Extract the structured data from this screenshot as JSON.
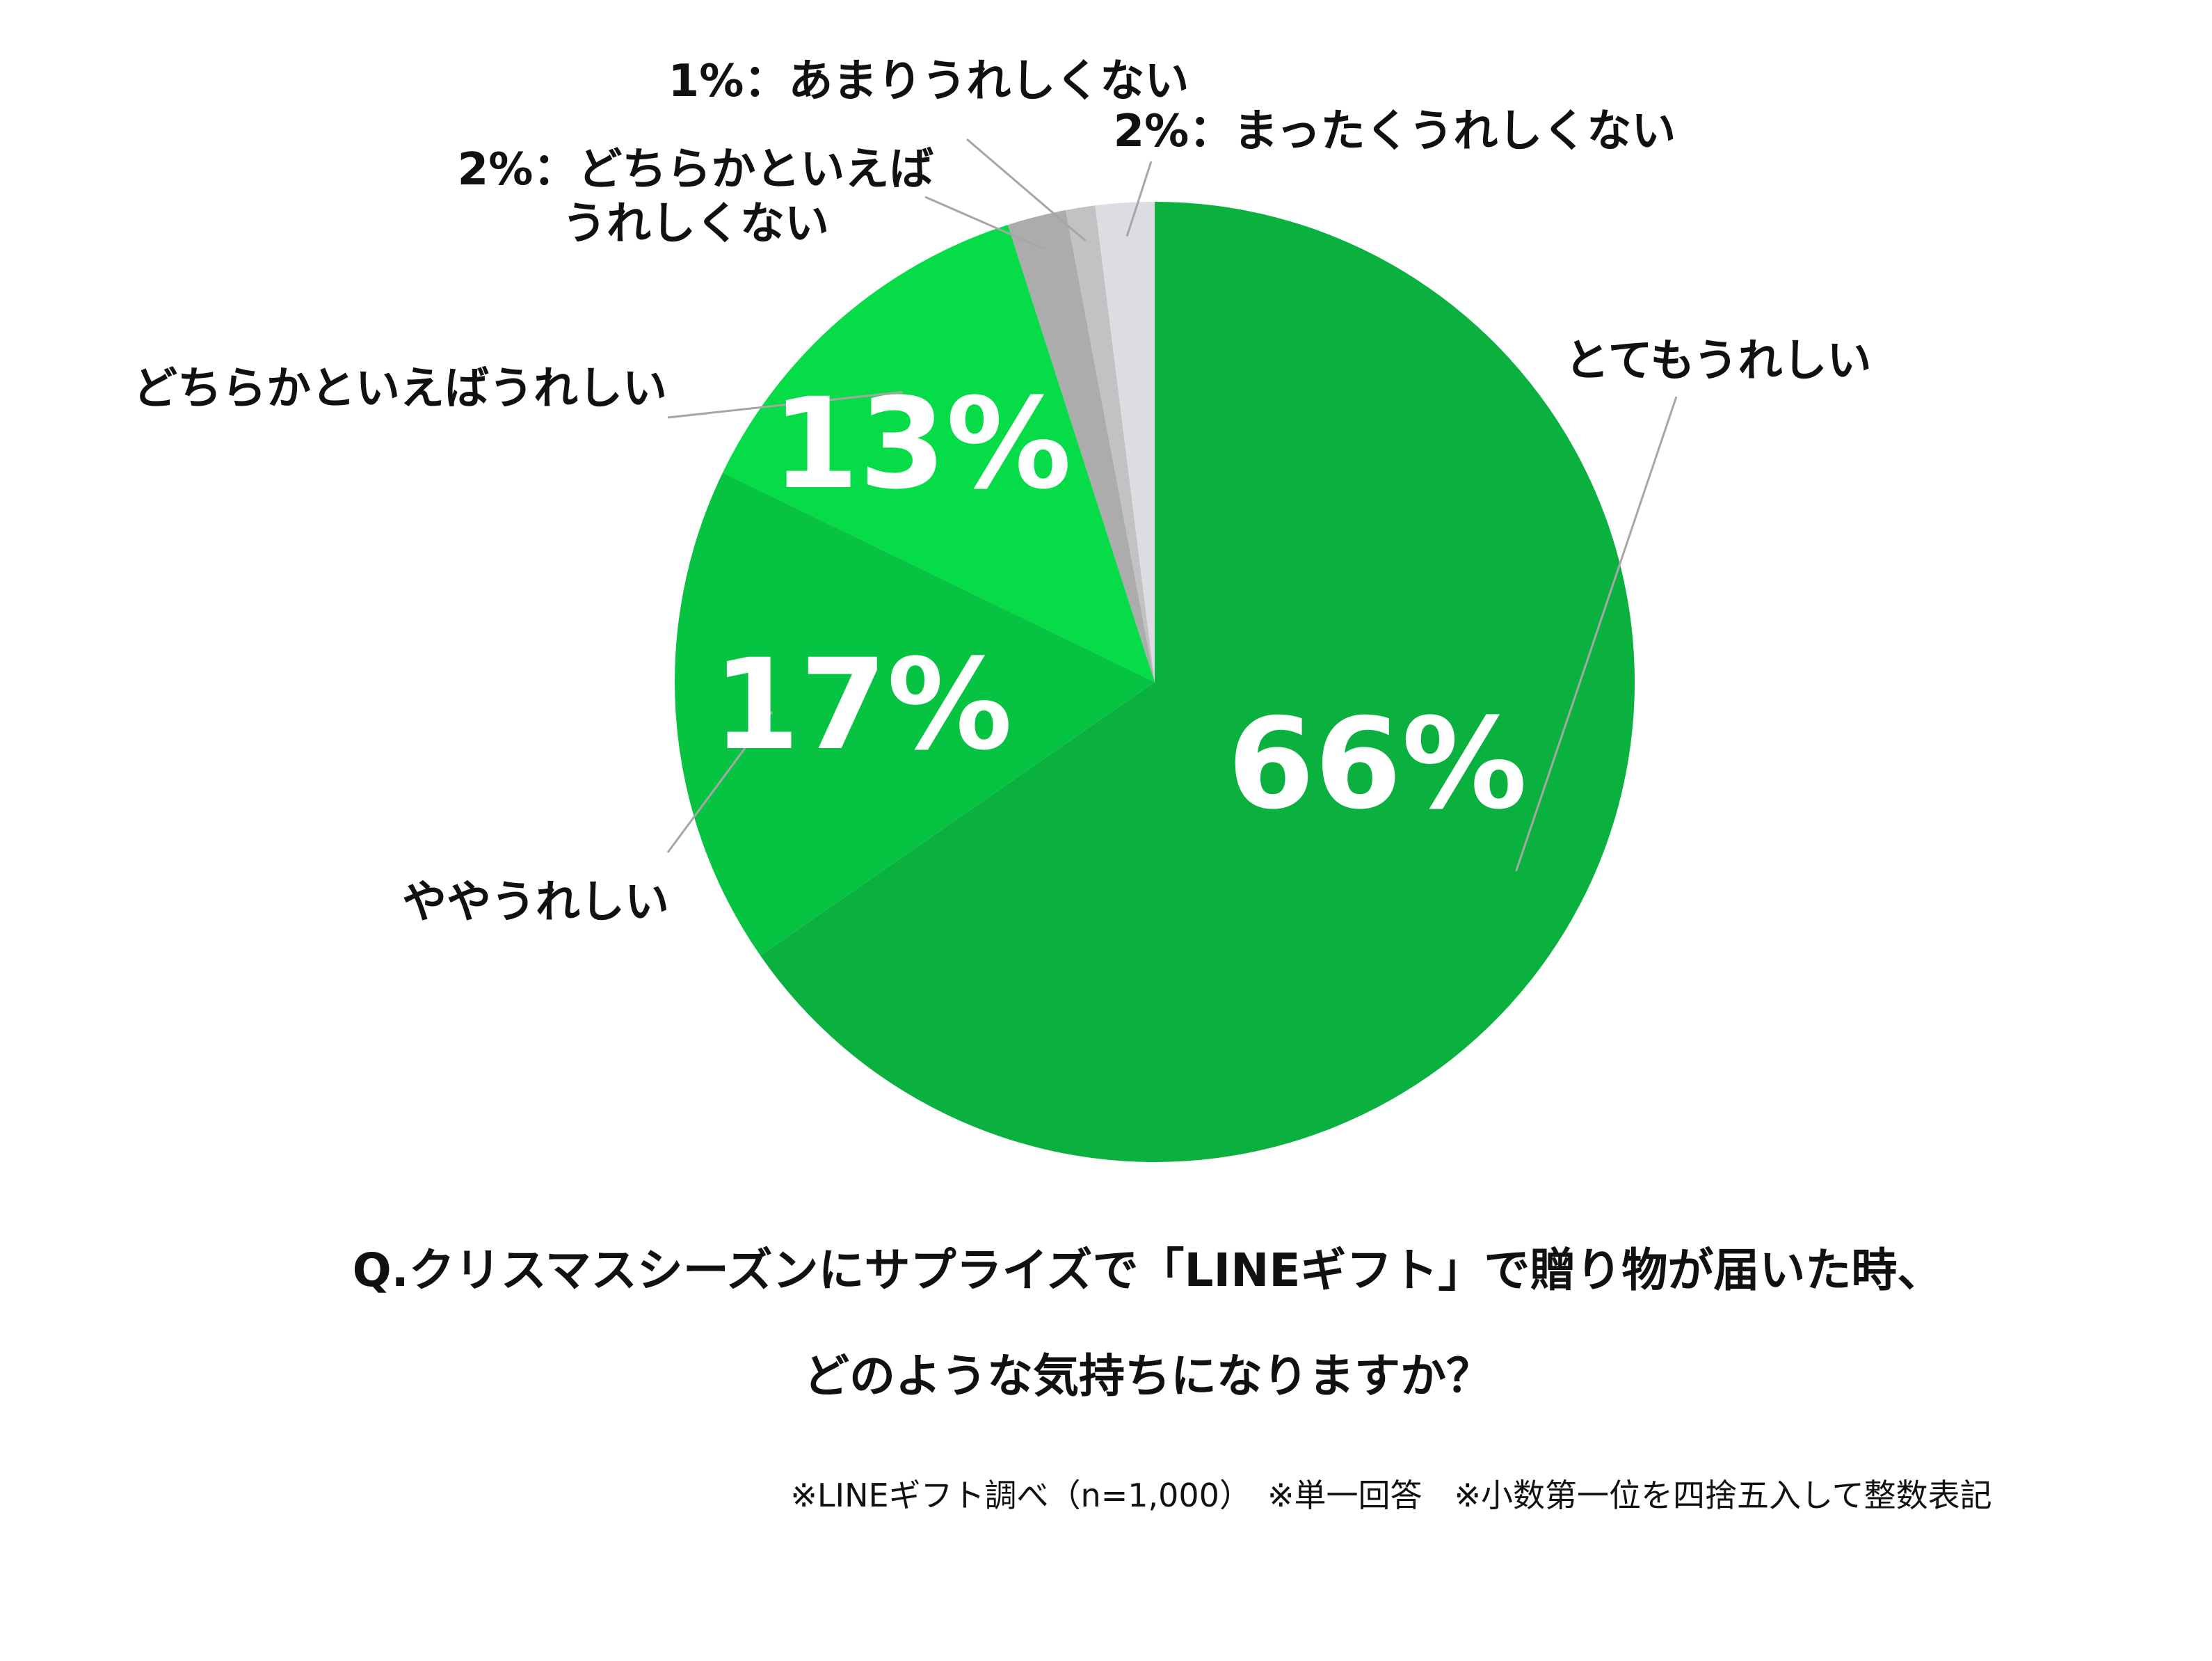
{
  "chart_data": {
    "type": "pie",
    "start_angle_deg": 0,
    "direction": "clockwise",
    "slices": [
      {
        "category": "とてもうれしい",
        "value": 66,
        "label": "66%",
        "color": "#0bb13f"
      },
      {
        "category": "ややうれしい",
        "value": 17,
        "label": "17%",
        "color": "#06c442"
      },
      {
        "category": "どちらかといえばうれしい",
        "value": 13,
        "label": "13%",
        "color": "#06dc48"
      },
      {
        "category": "2%：どちらかといえば|うれしくない",
        "value": 2,
        "label": "",
        "color": "#acacac"
      },
      {
        "category": "1%：あまりうれしくない",
        "value": 1,
        "label": "",
        "color": "#c2c2c2"
      },
      {
        "category": "2%：まったくうれしくない",
        "value": 2,
        "label": "",
        "color": "#dcdde2"
      }
    ],
    "title_lines": [
      "Q.クリスマスシーズンにサプライズで「LINEギフト」で贈り物が届いた時、",
      "どのような気持ちになりますか？"
    ],
    "note": "※LINEギフト調べ（n=1,000）　※単一回答　※小数第一位を四捨五入して整数表記"
  }
}
